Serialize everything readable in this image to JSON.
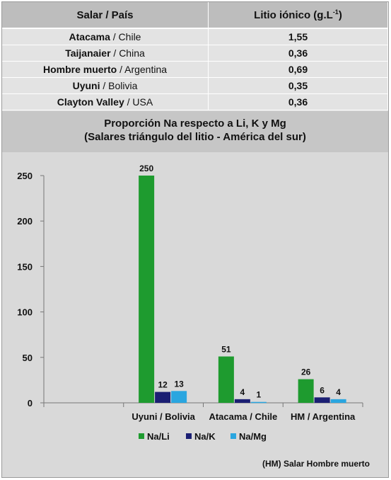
{
  "table": {
    "header": {
      "col1": "Salar / País",
      "col2_main": "Litio iónico (g.L",
      "col2_sup": "-1",
      "col2_end": ")"
    },
    "rows": [
      {
        "salar": "Atacama",
        "country": " / Chile",
        "value": "1,55"
      },
      {
        "salar": "Taijanaier",
        "country": " / China",
        "value": "0,36"
      },
      {
        "salar": "Hombre muerto",
        "country": " / Argentina",
        "value": "0,69"
      },
      {
        "salar": "Uyuni",
        "country": " / Bolivia",
        "value": "0,35"
      },
      {
        "salar": "Clayton Valley",
        "country": " / USA",
        "value": "0,36"
      }
    ]
  },
  "chart_data": {
    "type": "bar",
    "title": "Proporción  Na respecto a Li, K y Mg",
    "subtitle": "(Salares triángulo del litio - América del sur)",
    "categories": [
      "",
      "Uyuni / Bolivia",
      "Atacama / Chile",
      "HM / Argentina"
    ],
    "series": [
      {
        "name": "Na/Li",
        "color": "#1e9b2f",
        "values": [
          null,
          250,
          51,
          26
        ],
        "labels": [
          "",
          "250",
          "51",
          "26"
        ]
      },
      {
        "name": "Na/K",
        "color": "#1b1f73",
        "values": [
          null,
          12,
          4,
          6
        ],
        "labels": [
          "",
          "12",
          "4",
          "6"
        ]
      },
      {
        "name": "Na/Mg",
        "color": "#2aa6e0",
        "values": [
          null,
          13,
          1,
          4
        ],
        "labels": [
          "",
          "13",
          "1",
          "4"
        ]
      }
    ],
    "ylim": [
      0,
      250
    ],
    "yticks": [
      0,
      50,
      100,
      150,
      200,
      250
    ],
    "legend_position": "bottom",
    "grid": false
  },
  "footnote": "(HM) Salar Hombre muerto"
}
